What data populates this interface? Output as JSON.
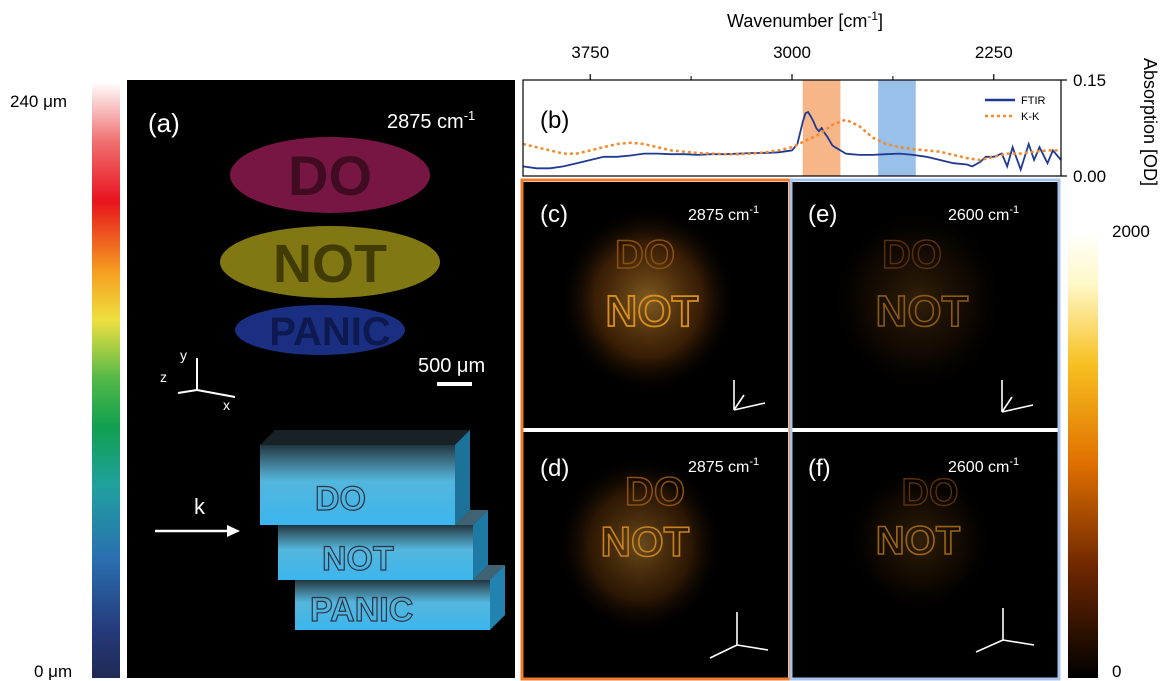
{
  "colors": {
    "ftir": "#1f3a93",
    "kk": "#f28a2e",
    "orange_band": "#f4a46a",
    "blue_band": "#7fb0e2",
    "orange_frame": "#f07a2e",
    "blue_frame": "#a9c4ec"
  },
  "depth_colorbar": {
    "top_label": "240 μm",
    "bottom_label": "0 μm",
    "colormap": "rainbow"
  },
  "intensity_colorbar": {
    "top_label": "2000",
    "bottom_label": "0",
    "colormap": "afmhot"
  },
  "panel_a": {
    "label": "(a)",
    "wavenumber": "2875 cm",
    "wavenumber_exp": "-1",
    "scalebar_label": "500 μm",
    "axes": {
      "x": "x",
      "y": "y",
      "z": "z"
    },
    "beam_label": "k",
    "layer_words": [
      "DO",
      "NOT",
      "PANIC"
    ]
  },
  "panels": [
    {
      "label": "(c)",
      "wavenumber": "2875 cm",
      "exp": "-1"
    },
    {
      "label": "(d)",
      "wavenumber": "2875 cm",
      "exp": "-1"
    },
    {
      "label": "(e)",
      "wavenumber": "2600 cm",
      "exp": "-1"
    },
    {
      "label": "(f)",
      "wavenumber": "2600 cm",
      "exp": "-1"
    }
  ],
  "chart_data": {
    "type": "line",
    "panel_label": "(b)",
    "xlabel": "Wavenumber [cm",
    "xlabel_exp": "-1",
    "xlabel_close": "]",
    "ylabel": "Absorption [OD]",
    "x_ticks": [
      "3750",
      "3000",
      "2250"
    ],
    "x_tick_values": [
      3750,
      3000,
      2250
    ],
    "y_ticks": [
      "0.15",
      "0.00"
    ],
    "xlim": [
      4000,
      2000
    ],
    "ylim": [
      0,
      0.15
    ],
    "x_reversed": true,
    "legend_position": "top-right",
    "shaded_bands": [
      {
        "from": 2960,
        "to": 2820,
        "color": "orange"
      },
      {
        "from": 2680,
        "to": 2540,
        "color": "blue"
      }
    ],
    "series": [
      {
        "name": "FTIR",
        "style": "solid",
        "x": [
          4000,
          3950,
          3900,
          3850,
          3800,
          3750,
          3700,
          3650,
          3600,
          3550,
          3500,
          3450,
          3400,
          3350,
          3300,
          3250,
          3200,
          3150,
          3100,
          3050,
          3000,
          2980,
          2960,
          2950,
          2940,
          2930,
          2920,
          2910,
          2900,
          2890,
          2880,
          2870,
          2860,
          2850,
          2840,
          2820,
          2800,
          2780,
          2750,
          2700,
          2650,
          2600,
          2550,
          2500,
          2450,
          2400,
          2350,
          2330,
          2300,
          2280,
          2250,
          2220,
          2200,
          2180,
          2150,
          2120,
          2100,
          2080,
          2050,
          2030,
          2000
        ],
        "y": [
          0.015,
          0.012,
          0.012,
          0.015,
          0.02,
          0.025,
          0.03,
          0.03,
          0.032,
          0.035,
          0.035,
          0.034,
          0.034,
          0.033,
          0.034,
          0.034,
          0.035,
          0.036,
          0.036,
          0.037,
          0.04,
          0.05,
          0.085,
          0.098,
          0.1,
          0.093,
          0.085,
          0.075,
          0.07,
          0.075,
          0.068,
          0.062,
          0.055,
          0.048,
          0.045,
          0.04,
          0.035,
          0.034,
          0.033,
          0.033,
          0.034,
          0.035,
          0.033,
          0.03,
          0.025,
          0.02,
          0.018,
          0.015,
          0.022,
          0.03,
          0.03,
          0.035,
          0.015,
          0.045,
          0.01,
          0.05,
          0.025,
          0.045,
          0.02,
          0.04,
          0.025
        ]
      },
      {
        "name": "K-K",
        "style": "dotted",
        "x": [
          4000,
          3950,
          3900,
          3850,
          3800,
          3750,
          3700,
          3650,
          3600,
          3550,
          3500,
          3450,
          3400,
          3350,
          3300,
          3250,
          3200,
          3150,
          3100,
          3050,
          3000,
          2950,
          2900,
          2850,
          2800,
          2750,
          2700,
          2650,
          2600,
          2550,
          2500,
          2450,
          2400,
          2350,
          2300,
          2250,
          2200,
          2150,
          2100,
          2050,
          2000
        ],
        "y": [
          0.05,
          0.045,
          0.04,
          0.035,
          0.035,
          0.04,
          0.045,
          0.05,
          0.052,
          0.05,
          0.045,
          0.04,
          0.038,
          0.036,
          0.035,
          0.034,
          0.034,
          0.035,
          0.037,
          0.04,
          0.045,
          0.055,
          0.065,
          0.08,
          0.088,
          0.078,
          0.06,
          0.05,
          0.045,
          0.042,
          0.04,
          0.038,
          0.033,
          0.028,
          0.025,
          0.03,
          0.035,
          0.035,
          0.038,
          0.04,
          0.04
        ]
      }
    ]
  }
}
